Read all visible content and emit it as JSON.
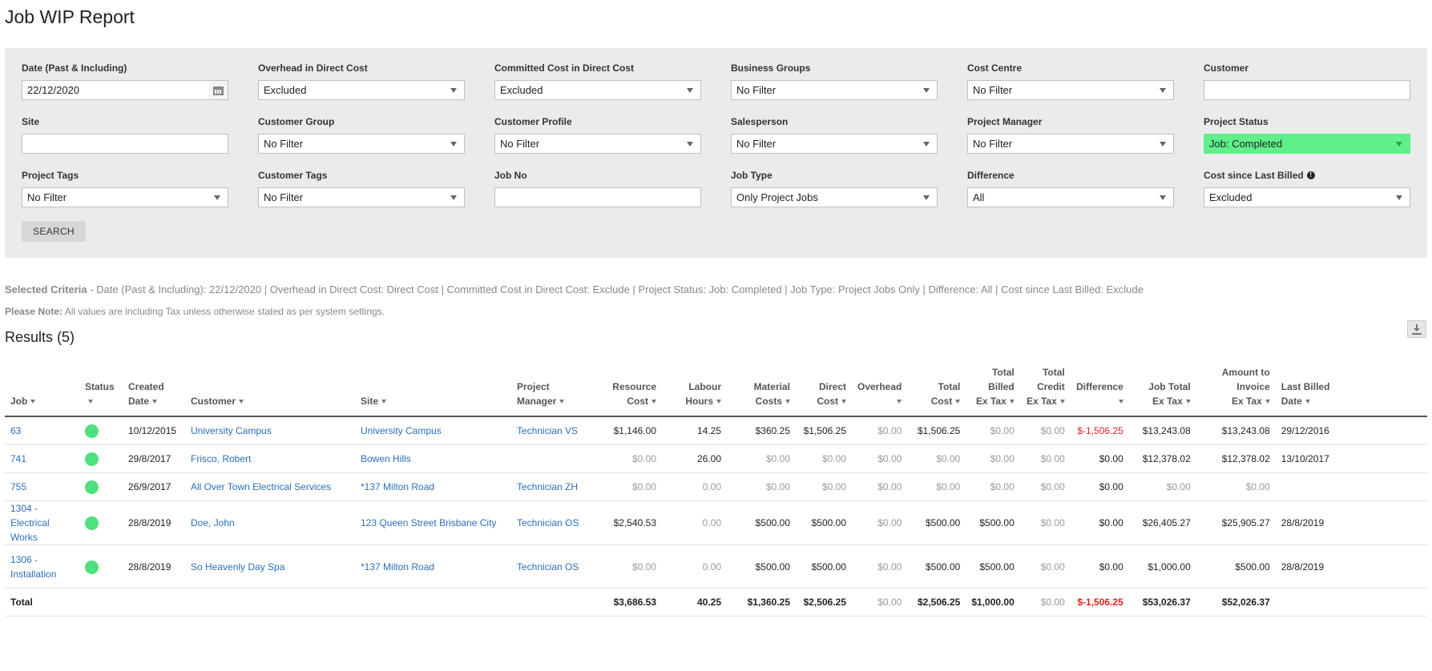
{
  "page": {
    "title": "Job WIP Report"
  },
  "filters": {
    "date": {
      "label": "Date (Past & Including)",
      "value": "22/12/2020"
    },
    "overhead": {
      "label": "Overhead in Direct Cost",
      "value": "Excluded"
    },
    "committed": {
      "label": "Committed Cost in Direct Cost",
      "value": "Excluded"
    },
    "business_groups": {
      "label": "Business Groups",
      "value": "No Filter"
    },
    "cost_centre": {
      "label": "Cost Centre",
      "value": "No Filter"
    },
    "customer": {
      "label": "Customer",
      "value": ""
    },
    "site": {
      "label": "Site",
      "value": ""
    },
    "customer_group": {
      "label": "Customer Group",
      "value": "No Filter"
    },
    "customer_profile": {
      "label": "Customer Profile",
      "value": "No Filter"
    },
    "salesperson": {
      "label": "Salesperson",
      "value": "No Filter"
    },
    "project_manager": {
      "label": "Project Manager",
      "value": "No Filter"
    },
    "project_status": {
      "label": "Project Status",
      "value": "Job: Completed",
      "color": "#5ff08a"
    },
    "project_tags": {
      "label": "Project Tags",
      "value": "No Filter"
    },
    "customer_tags": {
      "label": "Customer Tags",
      "value": "No Filter"
    },
    "job_no": {
      "label": "Job No",
      "value": ""
    },
    "job_type": {
      "label": "Job Type",
      "value": "Only Project Jobs"
    },
    "difference": {
      "label": "Difference",
      "value": "All"
    },
    "cost_since_billed": {
      "label": "Cost since Last Billed",
      "value": "Excluded"
    },
    "search_label": "SEARCH"
  },
  "criteria": {
    "label": "Selected Criteria",
    "text": " - Date (Past & Including): 22/12/2020 | Overhead in Direct Cost: Direct Cost | Committed Cost in Direct Cost: Exclude | Project Status: Job: Completed | Job Type: Project Jobs Only | Difference: All | Cost since Last Billed: Exclude"
  },
  "note": {
    "label": "Please Note:",
    "text": " All values are including Tax unless otherwise stated as per system settings."
  },
  "results": {
    "title": "Results (5)",
    "columns": {
      "job": "Job",
      "status": "Status",
      "created_1": "Created",
      "created_2": "Date",
      "customer": "Customer",
      "site": "Site",
      "pm_1": "Project",
      "pm_2": "Manager",
      "resource_1": "Resource",
      "resource_2": "Cost",
      "labour_1": "Labour",
      "labour_2": "Hours",
      "material_1": "Material",
      "material_2": "Costs",
      "direct_1": "Direct",
      "direct_2": "Cost",
      "overhead": "Overhead",
      "total_1": "Total",
      "total_2": "Cost",
      "billed_1": "Total",
      "billed_2": "Billed",
      "billed_3": "Ex Tax",
      "credit_1": "Total",
      "credit_2": "Credit",
      "credit_3": "Ex Tax",
      "difference": "Difference",
      "jobtotal_1": "Job Total",
      "jobtotal_2": "Ex Tax",
      "invoice_1": "Amount to",
      "invoice_2": "Invoice",
      "invoice_3": "Ex Tax",
      "lastbilled_1": "Last Billed",
      "lastbilled_2": "Date"
    },
    "status_color": "#4fe07f",
    "rows": [
      {
        "job": "63",
        "created": "10/12/2015",
        "customer": "University Campus",
        "site": "University Campus",
        "pm": "Technician VS",
        "resource": "$1,146.00",
        "labour": "14.25",
        "material": "$360.25",
        "direct": "$1,506.25",
        "overhead": "$0.00",
        "total": "$1,506.25",
        "billed": "$0.00",
        "credit": "$0.00",
        "difference": "$-1,506.25",
        "jobtotal": "$13,243.08",
        "invoice": "$13,243.08",
        "lastbilled": "29/12/2016"
      },
      {
        "job": "741",
        "created": "29/8/2017",
        "customer": "Frisco, Robert",
        "site": "Bowen Hills",
        "pm": "",
        "resource": "$0.00",
        "labour": "26.00",
        "material": "$0.00",
        "direct": "$0.00",
        "overhead": "$0.00",
        "total": "$0.00",
        "billed": "$0.00",
        "credit": "$0.00",
        "difference": "$0.00",
        "jobtotal": "$12,378.02",
        "invoice": "$12,378.02",
        "lastbilled": "13/10/2017"
      },
      {
        "job": "755",
        "created": "26/9/2017",
        "customer": "All Over Town Electrical Services",
        "site": "*137 Milton Road",
        "pm": "Technician ZH",
        "resource": "$0.00",
        "labour": "0.00",
        "material": "$0.00",
        "direct": "$0.00",
        "overhead": "$0.00",
        "total": "$0.00",
        "billed": "$0.00",
        "credit": "$0.00",
        "difference": "$0.00",
        "jobtotal": "$0.00",
        "invoice": "$0.00",
        "lastbilled": ""
      },
      {
        "job": "1304 - Electrical Works",
        "created": "28/8/2019",
        "customer": "Doe, John",
        "site": "123 Queen Street Brisbane City",
        "pm": "Technician OS",
        "resource": "$2,540.53",
        "labour": "0.00",
        "material": "$500.00",
        "direct": "$500.00",
        "overhead": "$0.00",
        "total": "$500.00",
        "billed": "$500.00",
        "credit": "$0.00",
        "difference": "$0.00",
        "jobtotal": "$26,405.27",
        "invoice": "$25,905.27",
        "lastbilled": "28/8/2019"
      },
      {
        "job": "1306 - Installation",
        "created": "28/8/2019",
        "customer": "So Heavenly Day Spa",
        "site": "*137 Milton Road",
        "pm": "Technician OS",
        "resource": "$0.00",
        "labour": "0.00",
        "material": "$500.00",
        "direct": "$500.00",
        "overhead": "$0.00",
        "total": "$500.00",
        "billed": "$500.00",
        "credit": "$0.00",
        "difference": "$0.00",
        "jobtotal": "$1,000.00",
        "invoice": "$500.00",
        "lastbilled": "28/8/2019"
      }
    ],
    "totals": {
      "label": "Total",
      "resource": "$3,686.53",
      "labour": "40.25",
      "material": "$1,360.25",
      "direct": "$2,506.25",
      "overhead": "$0.00",
      "total": "$2,506.25",
      "billed": "$1,000.00",
      "credit": "$0.00",
      "difference": "$-1,506.25",
      "jobtotal": "$53,026.37",
      "invoice": "$52,026.37"
    }
  }
}
